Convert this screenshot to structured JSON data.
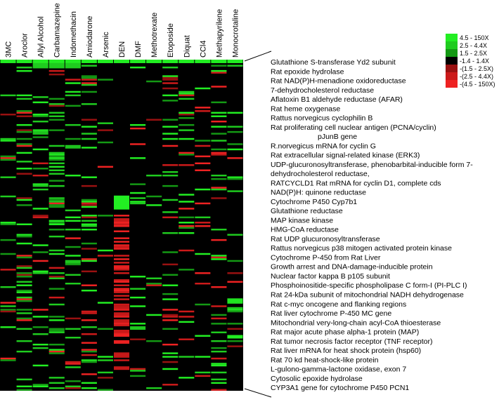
{
  "chart_data": {
    "type": "heatmap",
    "title": "",
    "columns": [
      "3MC",
      "Aroclor",
      "Allyl Alcohol",
      "Carbamazepine",
      "Indomethacin",
      "Amiodarone",
      "Arsenic",
      "DEN",
      "DMF",
      "Methotrexate",
      "Etoposide",
      "Diquat",
      "CCl4",
      "Methapyrilene",
      "Monocrotaline"
    ],
    "gene_labels": [
      "Glutathione S-transferase Yd2 subunit",
      "Rat epoxide hydrolase",
      "Rat NAD(P)H-menadione oxidoreductase",
      "7-dehydrocholesterol reductase",
      "Aflatoxin B1 aldehyde reductase (AFAR)",
      "Rat heme oxygenase",
      "Rattus norvegicus cyclophilin B",
      "Rat proliferating cell nuclear antigen (PCNA/cyclin)",
      "pJunB gene",
      "R.norvegicus mRNA for cyclin G",
      "Rat extracellular signal-related kinase (ERK3)",
      "UDP-glucuronosyltransferase, phenobarbital-inducible form 7-",
      "dehydrocholesterol reductase,",
      "RATCYCLD1 Rat mRNA for cyclin D1, complete cds",
      "NAD(P)H: quinone reductase",
      "Cytochrome P450 Cyp7b1",
      "Glutathione reductase",
      "MAP kinase kinase",
      "HMG-CoA reductase",
      "Rat UDP glucuronosyltransferase",
      "Rattus norvegicus p38 mitogen activated protein kinase",
      "Cytochrome P-450 from Rat Liver",
      "Growth arrest and DNA-damage-inducible protein",
      "Nuclear factor kappa B p105 subunit",
      "Phosphoinositide-specific phospholipase C form-I (PI-PLC I)",
      "Rat 24-kDa subunit of mitochondrial NADH dehydrogenase",
      "Rat c-myc oncogene and flanking regions",
      "Rat liver cytochrome P-450 MC gene",
      "Mitochondrial very-long-chain acyl-CoA thioesterase",
      "Rat major acute phase alpha-1 protein (MAP)",
      "Rat tumor necrosis factor receptor (TNF receptor)",
      "Rat liver mRNA for heat shock protein (hsp60)",
      "Rat 70 kd heat-shock-like protein",
      "L-gulono-gamma-lactone oxidase, exon 7",
      "Cytosolic epoxide hydrolase",
      "CYP3A1 gene for cytochrome P450 PCN1"
    ],
    "legend": [
      {
        "label": "4.5 - 150X",
        "color": "#22ee22"
      },
      {
        "label": "2.5 - 4.4X",
        "color": "#1fcc1f"
      },
      {
        "label": "1.5 - 2.5X",
        "color": "#149914"
      },
      {
        "label": "-1.4 - 1.4X",
        "color": "#000000"
      },
      {
        "label": "-(1.5 - 2.5X)",
        "color": "#991111"
      },
      {
        "label": "-(2.5 - 4.4X)",
        "color": "#cc1a1a"
      },
      {
        "label": "-(4.5 - 150X)",
        "color": "#ee2222"
      }
    ],
    "legend_placement": "top-right",
    "n_rows": 190,
    "colors": {
      "up": "#22ee22",
      "down": "#ee2222",
      "neutral": "#000000"
    }
  }
}
